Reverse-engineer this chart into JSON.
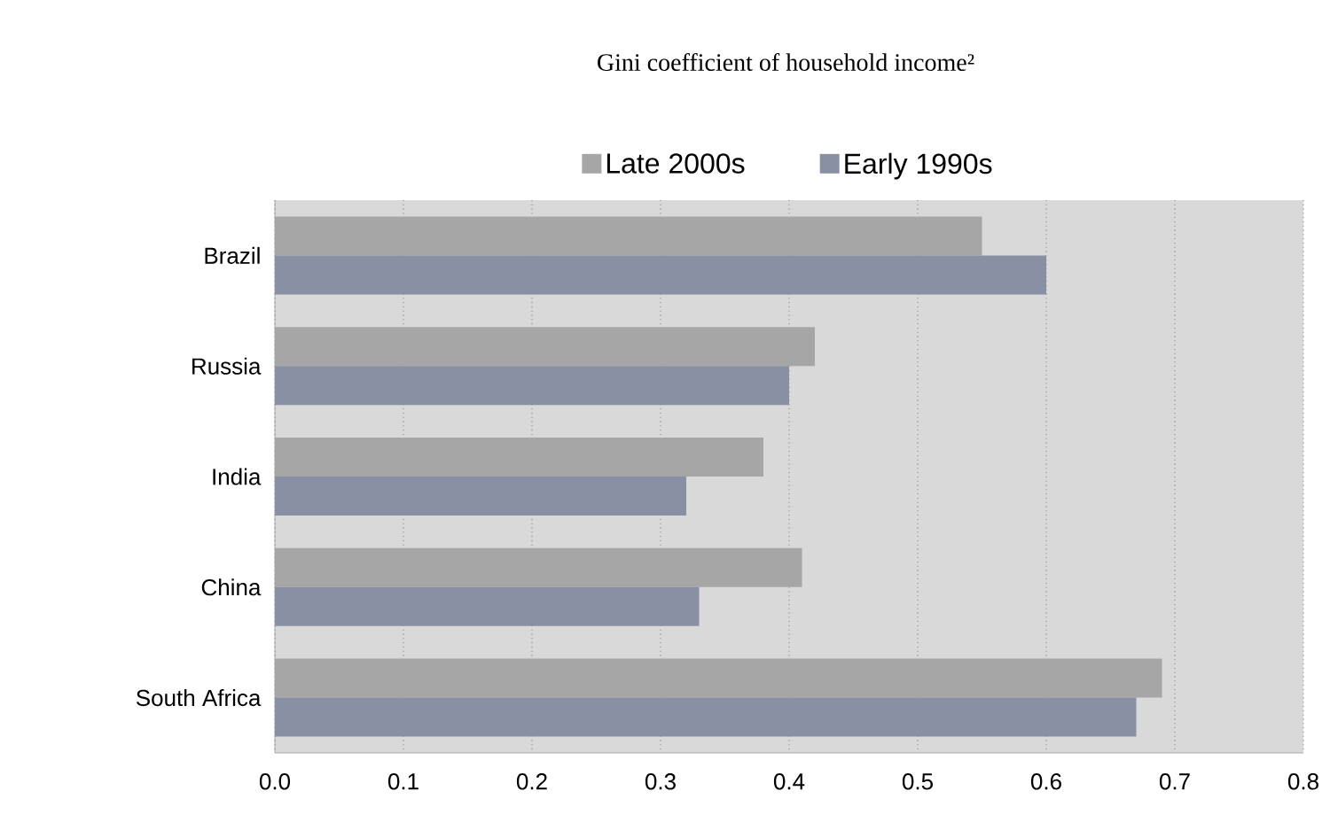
{
  "chart_data": {
    "type": "bar",
    "orientation": "horizontal",
    "title": "Gini coefficient of household income²",
    "categories": [
      "Brazil",
      "Russia",
      "India",
      "China",
      "South Africa"
    ],
    "series": [
      {
        "name": "Late 2000s",
        "color": "#a6a6a6",
        "values": [
          0.55,
          0.42,
          0.38,
          0.41,
          0.69
        ]
      },
      {
        "name": "Early 1990s",
        "color": "#8a90a4",
        "values": [
          0.6,
          0.4,
          0.32,
          0.33,
          0.67
        ]
      }
    ],
    "xlim": [
      0,
      0.8
    ],
    "xticks": [
      {
        "value": 0,
        "label": "0.0"
      },
      0.1,
      0.2,
      0.3,
      0.4,
      0.5,
      0.6,
      0.7,
      0.8
    ],
    "grid": "x",
    "legend": "top"
  }
}
